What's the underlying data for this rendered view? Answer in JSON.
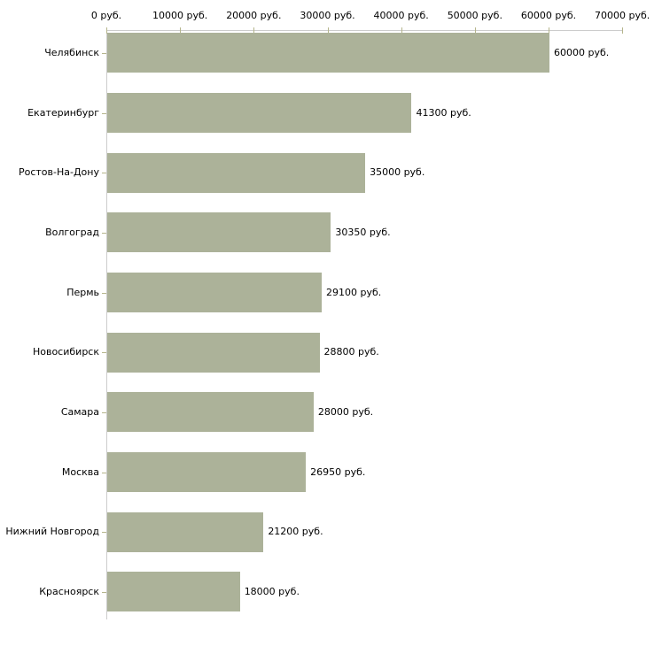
{
  "chart_data": {
    "type": "bar",
    "orientation": "horizontal",
    "title": "",
    "xlabel": "",
    "ylabel": "",
    "unit": "руб.",
    "categories": [
      "Челябинск",
      "Екатеринбург",
      "Ростов-На-Дону",
      "Волгоград",
      "Пермь",
      "Новосибирск",
      "Самара",
      "Москва",
      "Нижний Новгород",
      "Красноярск"
    ],
    "values": [
      60000,
      41300,
      35000,
      30350,
      29100,
      28800,
      28000,
      26950,
      21200,
      18000
    ],
    "value_labels": [
      "60000 руб.",
      "41300 руб.",
      "35000 руб.",
      "30350 руб.",
      "29100 руб.",
      "28800 руб.",
      "28000 руб.",
      "26950 руб.",
      "21200 руб.",
      "18000 руб."
    ],
    "x_ticks": [
      0,
      10000,
      20000,
      30000,
      40000,
      50000,
      60000,
      70000
    ],
    "x_tick_labels": [
      "0 руб.",
      "10000 руб.",
      "20000 руб.",
      "30000 руб.",
      "40000 руб.",
      "50000 руб.",
      "60000 руб.",
      "70000 руб."
    ],
    "xlim": [
      0,
      70000
    ],
    "grid": false,
    "legend": false,
    "colors": {
      "bar": "#acb299",
      "axis_line": "#cccccc",
      "tick": "#b5b58c",
      "text": "#000000",
      "background": "#ffffff"
    }
  }
}
